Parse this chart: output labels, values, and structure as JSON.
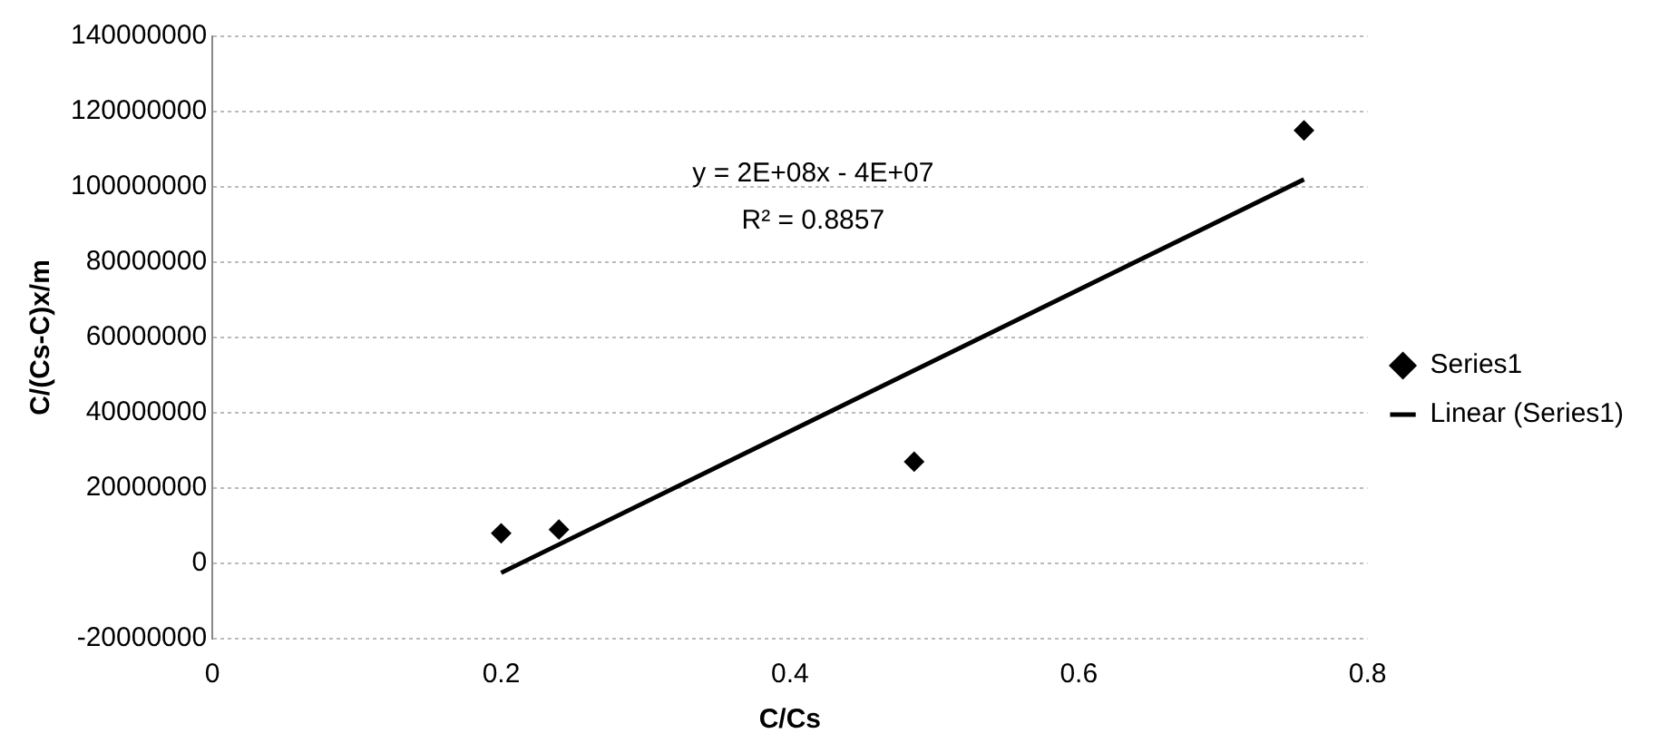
{
  "chart_data": {
    "type": "scatter",
    "xlabel": "C/Cs",
    "ylabel": "C/(Cs-C)x/m",
    "series": [
      {
        "name": "Series1",
        "color": "#000000",
        "x": [
          0.2,
          0.24,
          0.486,
          0.756
        ],
        "values": [
          8000000,
          9000000,
          27000000,
          115000000
        ],
        "marker": "diamond"
      },
      {
        "name": "Linear (Series1)",
        "type": "line",
        "color": "#000000",
        "x": [
          0.2,
          0.756
        ],
        "values": [
          -2500000,
          102000000
        ],
        "marker": "none",
        "line_style": "solid"
      }
    ],
    "xlim": [
      0,
      0.8
    ],
    "xticks": [
      0,
      0.2,
      0.4,
      0.6,
      0.8
    ],
    "ylim": [
      -20000000,
      140000000
    ],
    "yticks": [
      -20000000,
      0,
      20000000,
      40000000,
      60000000,
      80000000,
      100000000,
      120000000,
      140000000
    ],
    "grid": "y",
    "legend": "right",
    "annotations": [
      "y = 2E+08x - 4E+07",
      "R² = 0.8857"
    ]
  }
}
